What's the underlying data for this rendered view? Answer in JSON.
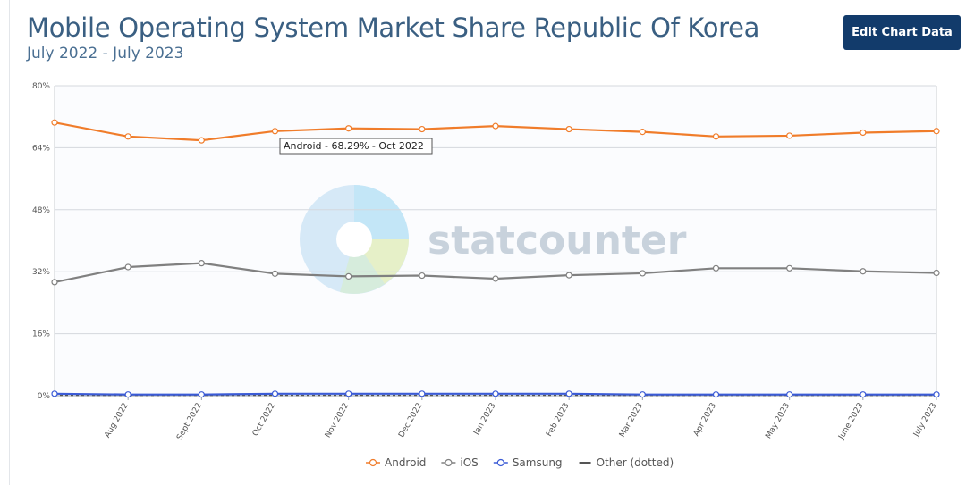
{
  "header": {
    "title": "Mobile Operating System Market Share Republic Of Korea",
    "subtitle": "July 2022 - July 2023",
    "edit_button_label": "Edit Chart Data"
  },
  "watermark": {
    "text": "statcounter"
  },
  "tooltip": {
    "text": "Android - 68.29% - Oct 2022"
  },
  "chart_data": {
    "type": "line",
    "title": "Mobile Operating System Market Share Republic Of Korea",
    "subtitle": "July 2022 - July 2023",
    "xlabel": "",
    "ylabel": "",
    "ylim": [
      0,
      80
    ],
    "y_ticks": [
      "0%",
      "16%",
      "32%",
      "48%",
      "64%",
      "80%"
    ],
    "y_tick_values": [
      0,
      16,
      32,
      48,
      64,
      80
    ],
    "categories": [
      "Jul 2022",
      "Aug 2022",
      "Sept 2022",
      "Oct 2022",
      "Nov 2022",
      "Dec 2022",
      "Jan 2023",
      "Feb 2023",
      "Mar 2023",
      "Apr 2023",
      "May 2023",
      "June 2023",
      "July 2023"
    ],
    "x_tick_labels": [
      "Aug 2022",
      "Sept 2022",
      "Oct 2022",
      "Nov 2022",
      "Dec 2022",
      "Jan 2023",
      "Feb 2023",
      "Mar 2023",
      "Apr 2023",
      "May 2023",
      "June 2023",
      "July 2023"
    ],
    "grid": true,
    "legend_position": "bottom-center",
    "series": [
      {
        "name": "Android",
        "color": "#f07c2a",
        "values": [
          70.5,
          66.9,
          65.9,
          68.29,
          69.0,
          68.8,
          69.6,
          68.8,
          68.1,
          66.9,
          67.1,
          67.9,
          68.3
        ]
      },
      {
        "name": "iOS",
        "color": "#808080",
        "values": [
          29.3,
          33.2,
          34.2,
          31.5,
          30.8,
          31.0,
          30.2,
          31.1,
          31.6,
          32.9,
          32.9,
          32.1,
          31.7
        ]
      },
      {
        "name": "Samsung",
        "color": "#3b5bd6",
        "values": [
          0.5,
          0.3,
          0.3,
          0.5,
          0.5,
          0.5,
          0.5,
          0.5,
          0.3,
          0.3,
          0.3,
          0.3,
          0.3
        ]
      },
      {
        "name": "Other (dotted)",
        "color": "#555555",
        "values": [
          0.1,
          0.1,
          0.1,
          0.1,
          0.1,
          0.1,
          0.1,
          0.1,
          0.1,
          0.1,
          0.1,
          0.1,
          0.1
        ]
      }
    ]
  }
}
